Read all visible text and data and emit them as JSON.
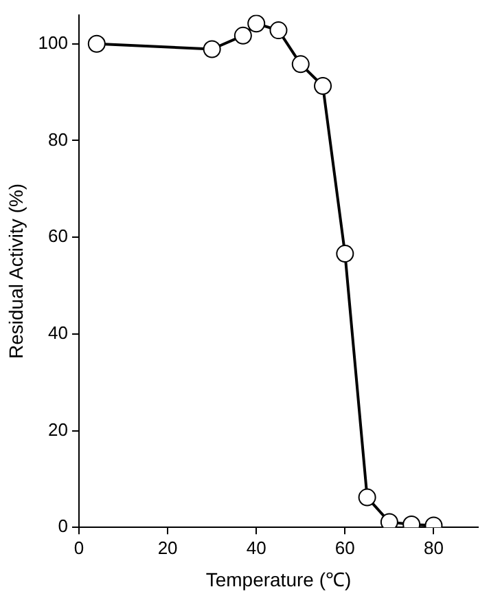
{
  "chart_data": {
    "type": "line",
    "xlabel": "Temperature (℃)",
    "ylabel": "Residual Activity (%)",
    "x": [
      4,
      30,
      37,
      40,
      45,
      50,
      55,
      60,
      65,
      70,
      75,
      80
    ],
    "series": [
      {
        "color": "#000000",
        "values": [
          100,
          98.9,
          101.7,
          104.2,
          102.8,
          95.8,
          91.3,
          56.6,
          6.2,
          1.1,
          0.6,
          0.4
        ]
      }
    ],
    "xlim": [
      0,
      90
    ],
    "xticks": [
      0,
      20,
      40,
      60,
      80
    ],
    "ylim": [
      0,
      106
    ],
    "yticks": [
      0,
      20,
      40,
      60,
      80,
      100
    ],
    "grid": false,
    "legend": false,
    "marker": "circle",
    "line_style": "solid"
  }
}
